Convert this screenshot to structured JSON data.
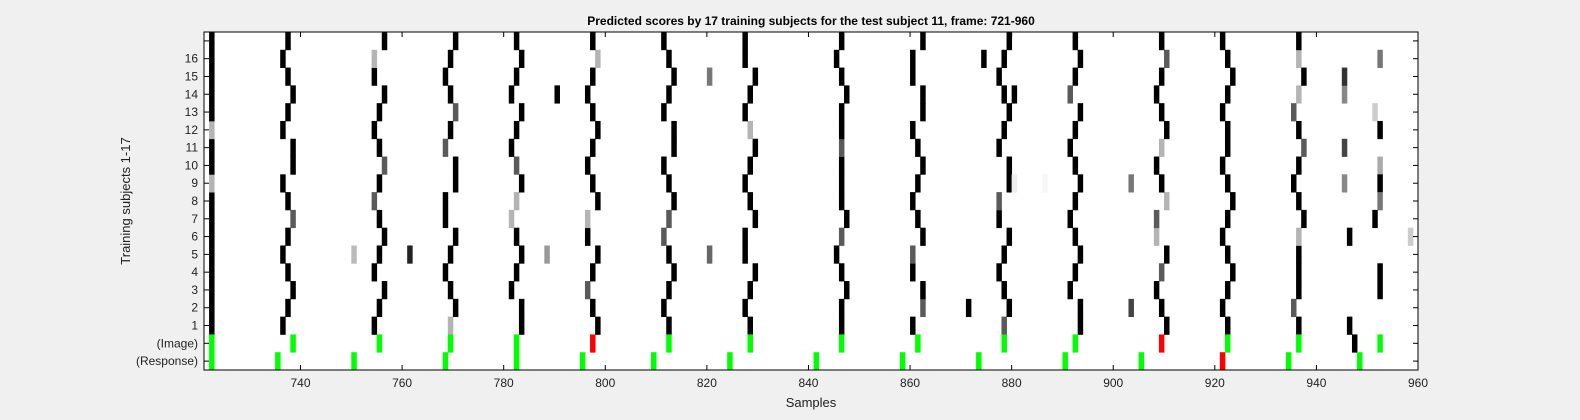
{
  "chart_data": {
    "type": "heatmap",
    "title": "Predicted scores by 17 training subjects for the test subject 11, frame: 721-960",
    "xlabel": "Samples",
    "ylabel": "Training subjects 1-17",
    "xlim": [
      721,
      960
    ],
    "xticks": [
      740,
      760,
      780,
      800,
      820,
      840,
      860,
      880,
      900,
      920,
      940,
      960
    ],
    "rows": [
      "(Response)",
      "(Image)",
      "1",
      "2",
      "3",
      "4",
      "5",
      "6",
      "7",
      "8",
      "9",
      "10",
      "11",
      "12",
      "13",
      "14",
      "15",
      "16",
      ""
    ],
    "grid": false,
    "colors": {
      "background": "#ffffff",
      "correct": "#00ff00",
      "wrong": "#ff0000",
      "frame": "#000000"
    },
    "response_markers": [
      {
        "x": 722,
        "status": "correct"
      },
      {
        "x": 735,
        "status": "correct"
      },
      {
        "x": 750,
        "status": "correct"
      },
      {
        "x": 768,
        "status": "correct"
      },
      {
        "x": 782,
        "status": "correct"
      },
      {
        "x": 795,
        "status": "correct"
      },
      {
        "x": 809,
        "status": "correct"
      },
      {
        "x": 824,
        "status": "correct"
      },
      {
        "x": 841,
        "status": "correct"
      },
      {
        "x": 858,
        "status": "correct"
      },
      {
        "x": 873,
        "status": "correct"
      },
      {
        "x": 890,
        "status": "correct"
      },
      {
        "x": 905,
        "status": "correct"
      },
      {
        "x": 921,
        "status": "wrong"
      },
      {
        "x": 934,
        "status": "correct"
      },
      {
        "x": 948,
        "status": "correct"
      }
    ],
    "image_markers": [
      {
        "x": 722,
        "status": "correct"
      },
      {
        "x": 738,
        "status": "correct"
      },
      {
        "x": 755,
        "status": "correct"
      },
      {
        "x": 769,
        "status": "correct"
      },
      {
        "x": 782,
        "status": "correct"
      },
      {
        "x": 797,
        "status": "wrong"
      },
      {
        "x": 812,
        "status": "correct"
      },
      {
        "x": 828,
        "status": "correct"
      },
      {
        "x": 846,
        "status": "correct"
      },
      {
        "x": 861,
        "status": "correct"
      },
      {
        "x": 878,
        "status": "correct"
      },
      {
        "x": 892,
        "status": "correct"
      },
      {
        "x": 909,
        "status": "wrong"
      },
      {
        "x": 922,
        "status": "correct"
      },
      {
        "x": 936,
        "status": "correct"
      },
      {
        "x": 952,
        "status": "correct"
      }
    ],
    "score_columns": [
      {
        "base": 722,
        "sw": 0.0,
        "gray": [],
        "lite": [
          13,
          10
        ]
      },
      {
        "base": 737,
        "sw": 0.55,
        "gray": [
          8
        ],
        "lite": []
      },
      {
        "base": 755,
        "sw": 0.45,
        "gray": [
          9,
          11
        ],
        "lite": [
          17
        ]
      },
      {
        "base": 769,
        "sw": 0.5,
        "gray": [
          12,
          14
        ],
        "lite": [
          2
        ]
      },
      {
        "base": 782,
        "sw": 0.45,
        "gray": [
          11
        ],
        "lite": [
          9,
          8
        ]
      },
      {
        "base": 797,
        "sw": 0.5,
        "gray": [
          1,
          4
        ],
        "lite": [
          17,
          8
        ]
      },
      {
        "base": 812,
        "sw": 0.45,
        "gray": [
          7,
          8
        ],
        "lite": []
      },
      {
        "base": 828,
        "sw": 0.5,
        "gray": [],
        "lite": [
          13
        ]
      },
      {
        "base": 846,
        "sw": 0.3,
        "gray": [
          7,
          12
        ],
        "lite": []
      },
      {
        "base": 861,
        "sw": 0.6,
        "gray": [
          3,
          6
        ],
        "lite": []
      },
      {
        "base": 878,
        "sw": 0.55,
        "gray": [
          1,
          2,
          9
        ],
        "lite": []
      },
      {
        "base": 892,
        "sw": 0.45,
        "gray": [
          15
        ],
        "lite": []
      },
      {
        "base": 909,
        "sw": 0.5,
        "gray": [
          5,
          8,
          17
        ],
        "lite": [
          12,
          9,
          7
        ]
      },
      {
        "base": 922,
        "sw": 0.4,
        "gray": [],
        "lite": []
      },
      {
        "base": 936,
        "sw": 0.35,
        "gray": [
          3,
          12,
          14
        ],
        "lite": [
          7,
          15,
          17
        ]
      }
    ],
    "extra_cells": [
      {
        "x": 750,
        "row": 6,
        "shade": "#bbbbbb"
      },
      {
        "x": 761,
        "row": 6,
        "shade": "#222222"
      },
      {
        "x": 790,
        "row": 15,
        "shade": "#000000"
      },
      {
        "x": 788,
        "row": 6,
        "shade": "#999999"
      },
      {
        "x": 820,
        "row": 16,
        "shade": "#777777"
      },
      {
        "x": 820,
        "row": 6,
        "shade": "#666666"
      },
      {
        "x": 871,
        "row": 3,
        "shade": "#000000"
      },
      {
        "x": 874,
        "row": 17,
        "shade": "#000000"
      },
      {
        "x": 880,
        "row": 15,
        "shade": "#000000"
      },
      {
        "x": 880,
        "row": 10,
        "shade": "#eeeeee"
      },
      {
        "x": 886,
        "row": 10,
        "shade": "#f6f6f6"
      },
      {
        "x": 903,
        "row": 10,
        "shade": "#777777"
      },
      {
        "x": 903,
        "row": 3,
        "shade": "#444444"
      },
      {
        "x": 945,
        "row": 15,
        "shade": "#888888"
      },
      {
        "x": 945,
        "row": 10,
        "shade": "#888888"
      },
      {
        "x": 945,
        "row": 12,
        "shade": "#444444"
      },
      {
        "x": 945,
        "row": 16,
        "shade": "#333333"
      },
      {
        "x": 946,
        "row": 2,
        "shade": "#000000"
      },
      {
        "x": 947,
        "row": 1,
        "shade": "#000000"
      },
      {
        "x": 946,
        "row": 7,
        "shade": "#000000"
      },
      {
        "x": 951,
        "row": 14,
        "shade": "#cccccc"
      },
      {
        "x": 952,
        "row": 13,
        "shade": "#000000"
      },
      {
        "x": 952,
        "row": 11,
        "shade": "#aaaaaa"
      },
      {
        "x": 952,
        "row": 10,
        "shade": "#000000"
      },
      {
        "x": 952,
        "row": 9,
        "shade": "#777777"
      },
      {
        "x": 951,
        "row": 8,
        "shade": "#000000"
      },
      {
        "x": 952,
        "row": 5,
        "shade": "#000000"
      },
      {
        "x": 952,
        "row": 4,
        "shade": "#000000"
      },
      {
        "x": 952,
        "row": 17,
        "shade": "#777777"
      },
      {
        "x": 958,
        "row": 7,
        "shade": "#cccccc"
      }
    ]
  }
}
